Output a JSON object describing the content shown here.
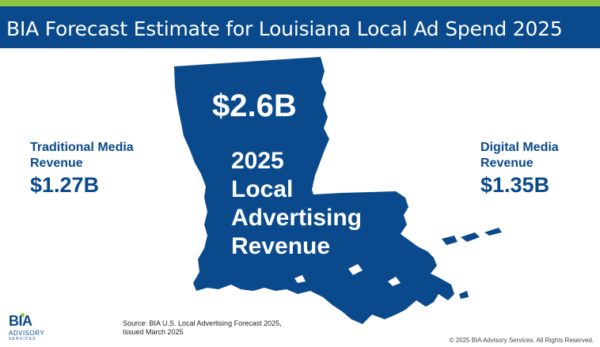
{
  "header": {
    "title": "BIA Forecast Estimate for Louisiana Local Ad Spend 2025",
    "bar_color": "#0a4a8c",
    "stripe_color": "#8dc63f"
  },
  "map": {
    "state": "Louisiana",
    "fill_color": "#0a4a8c",
    "total_value": "$2.6B",
    "caption_lines": [
      "2025",
      "Local",
      "Advertising",
      "Revenue"
    ]
  },
  "traditional": {
    "label_lines": [
      "Traditional Media",
      "Revenue"
    ],
    "value": "$1.27B"
  },
  "digital": {
    "label_lines": [
      "Digital Media",
      "Revenue"
    ],
    "value": "$1.35B"
  },
  "source": {
    "lines": [
      "Source: BIA U.S. Local Advertising Forecast 2025,",
      "Issued March 2025"
    ]
  },
  "logo": {
    "mark": "BIA",
    "line1": "ADVISORY",
    "line2": "SERVICES"
  },
  "footer": {
    "copyright": "© 2025 BIA Advisory Services. All Rights Reserved."
  }
}
